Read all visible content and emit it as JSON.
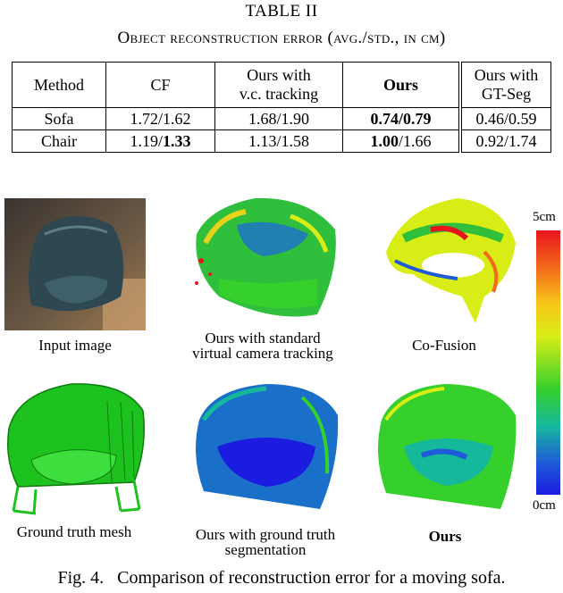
{
  "table": {
    "number": "TABLE II",
    "caption": "Object reconstruction error (avg./std., in cm)",
    "headers": [
      "Method",
      "CF",
      "Ours with\nv.c. tracking",
      "Ours",
      "Ours with\nGT-Seg"
    ],
    "rows": [
      {
        "label": "Sofa",
        "cells": [
          {
            "parts": [
              {
                "text": "1.72/1.62",
                "bold": false
              }
            ]
          },
          {
            "parts": [
              {
                "text": "1.68/1.90",
                "bold": false
              }
            ]
          },
          {
            "parts": [
              {
                "text": "0.74/0.79",
                "bold": true
              }
            ]
          },
          {
            "parts": [
              {
                "text": "0.46/0.59",
                "bold": false
              }
            ]
          }
        ]
      },
      {
        "label": "Chair",
        "cells": [
          {
            "parts": [
              {
                "text": "1.19/",
                "bold": false
              },
              {
                "text": "1.33",
                "bold": true
              }
            ]
          },
          {
            "parts": [
              {
                "text": "1.13/1.58",
                "bold": false
              }
            ]
          },
          {
            "parts": [
              {
                "text": "1.00",
                "bold": true
              },
              {
                "text": "/1.66",
                "bold": false
              }
            ]
          },
          {
            "parts": [
              {
                "text": "0.92/1.74",
                "bold": false
              }
            ]
          }
        ]
      }
    ]
  },
  "figure": {
    "panels": [
      {
        "label": "Input image"
      },
      {
        "label": "Ours with standard\nvirtual camera tracking"
      },
      {
        "label": "Co-Fusion"
      },
      {
        "label": "Ground truth mesh"
      },
      {
        "label": "Ours with ground truth\nsegmentation"
      },
      {
        "label": "Ours"
      }
    ],
    "colorbar": {
      "max_label": "5cm",
      "min_label": "0cm"
    },
    "caption": "Fig. 4.   Comparison of reconstruction error for a moving sofa."
  }
}
